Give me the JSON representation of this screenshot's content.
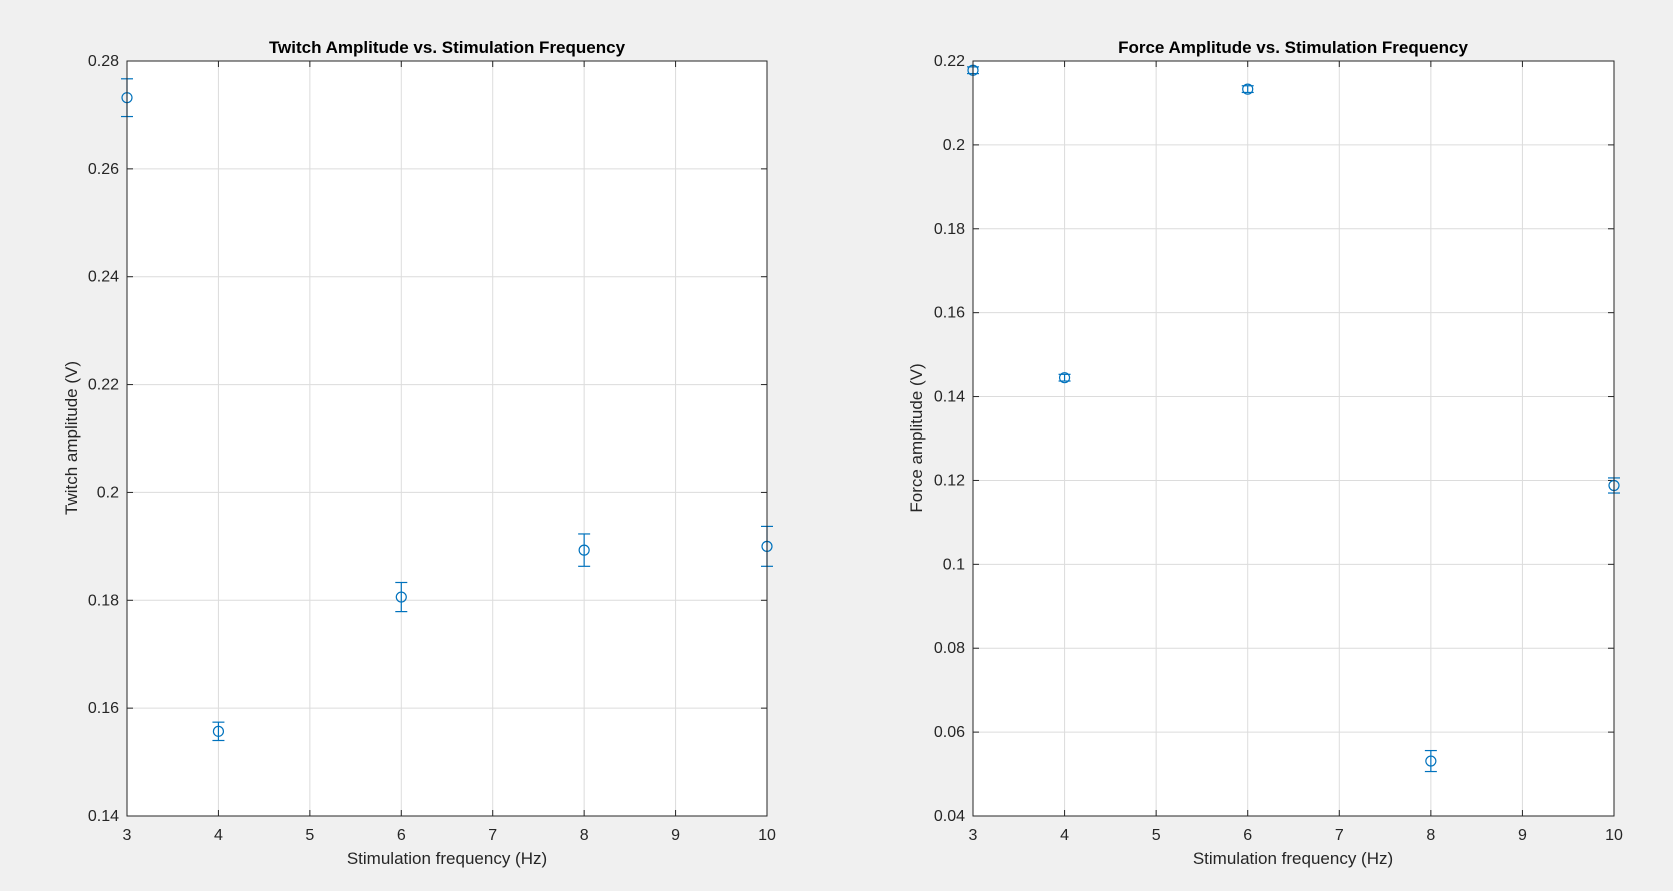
{
  "figure": {
    "background": "#f0f0f0",
    "axes_background": "#ffffff",
    "marker_color": "#0072bd",
    "grid_color": "#dcdcdc"
  },
  "chart_data": [
    {
      "type": "scatter",
      "marker": "circle-with-errorbars",
      "title": "Twitch Amplitude vs. Stimulation Frequency",
      "xlabel": "Stimulation frequency (Hz)",
      "ylabel": "Twitch amplitude (V)",
      "xlim": [
        3,
        10
      ],
      "ylim": [
        0.14,
        0.28
      ],
      "xticks": [
        3,
        4,
        5,
        6,
        7,
        8,
        9,
        10
      ],
      "xtick_labels": [
        "3",
        "4",
        "5",
        "6",
        "7",
        "8",
        "9",
        "10"
      ],
      "yticks": [
        0.14,
        0.16,
        0.18,
        0.2,
        0.22,
        0.24,
        0.26,
        0.28
      ],
      "ytick_labels": [
        "0.14",
        "0.16",
        "0.18",
        "0.2",
        "0.22",
        "0.24",
        "0.26",
        "0.28"
      ],
      "grid": true,
      "x": [
        3,
        4,
        6,
        8,
        10
      ],
      "y": [
        0.2732,
        0.1557,
        0.1806,
        0.1893,
        0.19
      ],
      "err": [
        0.0035,
        0.0017,
        0.0027,
        0.003,
        0.0037
      ]
    },
    {
      "type": "scatter",
      "marker": "circle-with-errorbars",
      "title": "Force Amplitude vs. Stimulation Frequency",
      "xlabel": "Stimulation frequency (Hz)",
      "ylabel": "Force amplitude (V)",
      "xlim": [
        3,
        10
      ],
      "ylim": [
        0.04,
        0.22
      ],
      "xticks": [
        3,
        4,
        5,
        6,
        7,
        8,
        9,
        10
      ],
      "xtick_labels": [
        "3",
        "4",
        "5",
        "6",
        "7",
        "8",
        "9",
        "10"
      ],
      "yticks": [
        0.04,
        0.06,
        0.08,
        0.1,
        0.12,
        0.14,
        0.16,
        0.18,
        0.2,
        0.22
      ],
      "ytick_labels": [
        "0.04",
        "0.06",
        "0.08",
        "0.1",
        "0.12",
        "0.14",
        "0.16",
        "0.18",
        "0.2",
        "0.22"
      ],
      "grid": true,
      "x": [
        3,
        4,
        6,
        8,
        10
      ],
      "y": [
        0.2178,
        0.1445,
        0.2133,
        0.0531,
        0.1188
      ],
      "err": [
        0.0008,
        0.0008,
        0.0008,
        0.0025,
        0.0018
      ]
    }
  ]
}
